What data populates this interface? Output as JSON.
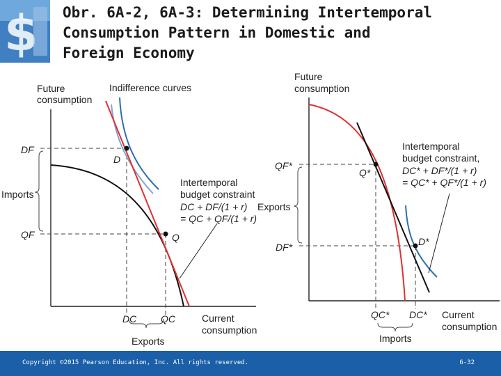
{
  "title_lines": [
    "Obr. 6A-2, 6A-3: Determining Intertemporal",
    "Consumption Pattern in Domestic and",
    "Foreign Economy"
  ],
  "left": {
    "y_axis_label": [
      "Future",
      "consumption"
    ],
    "x_axis_label": [
      "Current",
      "consumption"
    ],
    "indifference_label": "Indifference curves",
    "budget_label": [
      "Intertemporal",
      "budget constraint"
    ],
    "budget_eq_1": "DC + DF/(1 + r)",
    "budget_eq_2": "= QC + QF/(1 + r)",
    "DF": "DF",
    "QF": "QF",
    "DC": "DC",
    "QC": "QC",
    "D": "D",
    "Q": "Q",
    "imports": "Imports",
    "exports": "Exports"
  },
  "right": {
    "y_axis_label": [
      "Future",
      "consumption"
    ],
    "x_axis_label": [
      "Current",
      "consumption"
    ],
    "budget_label": [
      "Intertemporal",
      "budget constraint,"
    ],
    "budget_eq_1": "DC* + DF*/(1 + r)",
    "budget_eq_2": "= QC* + QF*/(1 + r)",
    "QF": "QF*",
    "DF": "DF*",
    "QC": "QC*",
    "DC": "DC*",
    "Q": "Q*",
    "D": "D*",
    "exports": "Exports",
    "imports": "Imports"
  },
  "footer": {
    "copyright": "Copyright ©2015 Pearson Education, Inc. All rights reserved.",
    "page": "6-32"
  },
  "colors": {
    "footer": "#1a5fa8",
    "budget_line": "#e03030",
    "ppf": "#111111",
    "indifference": "#2a6fb0"
  }
}
